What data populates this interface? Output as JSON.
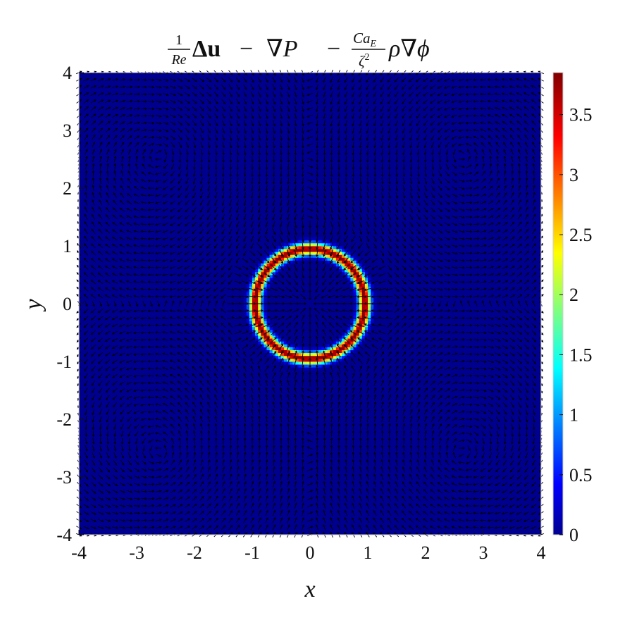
{
  "chart_data": {
    "type": "heatmap",
    "title_tex": "\\frac{1}{Re}\\Delta\\mathbf{u}-\\nabla P-\\frac{Ca_E}{\\zeta^2}\\rho\\nabla\\phi",
    "title_parts": {
      "frac1_num": "1",
      "frac1_den": "Re",
      "delta_u": "Δu",
      "minus1": "−",
      "grad_p": "∇P",
      "minus2": "−",
      "frac2_num": "Ca",
      "frac2_num_sub": "E",
      "frac2_den": "ζ",
      "frac2_den_sup": "2",
      "rho_grad_phi": "ρ∇ϕ"
    },
    "xlabel": "x",
    "ylabel": "y",
    "xlim": [
      -4,
      4
    ],
    "ylim": [
      -4,
      4
    ],
    "xticks": [
      "-4",
      "-3",
      "-2",
      "-1",
      "0",
      "1",
      "2",
      "3",
      "4"
    ],
    "yticks": [
      "4",
      "3",
      "2",
      "1",
      "0",
      "-1",
      "-2",
      "-3",
      "-4"
    ],
    "colormap": "jet",
    "colorbar": {
      "range": [
        0,
        3.85
      ],
      "ticks": [
        "0",
        "0.5",
        "1",
        "1.5",
        "2",
        "2.5",
        "3",
        "3.5"
      ],
      "tick_values": [
        0,
        0.5,
        1,
        1.5,
        2,
        2.5,
        3,
        3.5
      ],
      "placement": "right"
    },
    "field": {
      "description_shape": "ring",
      "ring_center": [
        0,
        0
      ],
      "ring_radius": 0.95,
      "ring_peak_value": 3.85,
      "ring_half_width": 0.1,
      "background_value": 0.02
    },
    "quiver": {
      "color": "#000000",
      "grid_n": 64,
      "pattern": "radial-in-near-ring, circulating-cells-outside"
    }
  }
}
